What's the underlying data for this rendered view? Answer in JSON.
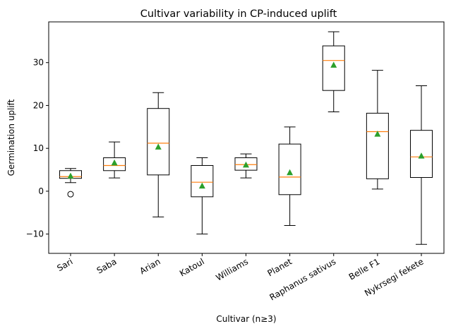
{
  "chart_data": {
    "type": "box",
    "title": "Cultivar variability in CP-induced uplift",
    "xlabel": "Cultivar (n≥3)",
    "ylabel": "Germination uplift",
    "ylim": [
      -14.5,
      39.5
    ],
    "yticks": [
      -10,
      0,
      10,
      20,
      30
    ],
    "yticklabels": [
      "−10",
      "0",
      "10",
      "20",
      "30"
    ],
    "grid": false,
    "categories": [
      "Sari",
      "Saba",
      "Arian",
      "Katoul",
      "Williams",
      "Planet",
      "Raphanus sativus",
      "Belle F1",
      "Nykrsegi fekete"
    ],
    "boxes": [
      {
        "whisker_low": 2.0,
        "q1": 3.0,
        "median": 3.4,
        "q3": 4.8,
        "whisker_high": 5.3,
        "mean": 3.5,
        "outliers": [
          -0.7
        ]
      },
      {
        "whisker_low": 3.1,
        "q1": 4.8,
        "median": 6.0,
        "q3": 7.8,
        "whisker_high": 11.5,
        "mean": 6.6,
        "outliers": []
      },
      {
        "whisker_low": -6.0,
        "q1": 3.8,
        "median": 11.2,
        "q3": 19.3,
        "whisker_high": 23.0,
        "mean": 10.3,
        "outliers": []
      },
      {
        "whisker_low": -10.0,
        "q1": -1.3,
        "median": 2.1,
        "q3": 6.0,
        "whisker_high": 7.8,
        "mean": 1.2,
        "outliers": []
      },
      {
        "whisker_low": 3.1,
        "q1": 4.9,
        "median": 6.2,
        "q3": 7.8,
        "whisker_high": 8.7,
        "mean": 6.1,
        "outliers": []
      },
      {
        "whisker_low": -8.0,
        "q1": -0.8,
        "median": 3.3,
        "q3": 11.0,
        "whisker_high": 15.0,
        "mean": 4.3,
        "outliers": []
      },
      {
        "whisker_low": 18.5,
        "q1": 23.5,
        "median": 30.5,
        "q3": 33.9,
        "whisker_high": 37.2,
        "mean": 29.4,
        "outliers": []
      },
      {
        "whisker_low": 0.5,
        "q1": 2.9,
        "median": 13.9,
        "q3": 18.2,
        "whisker_high": 28.2,
        "mean": 13.3,
        "outliers": []
      },
      {
        "whisker_low": -12.4,
        "q1": 3.2,
        "median": 8.0,
        "q3": 14.2,
        "whisker_high": 24.6,
        "mean": 8.2,
        "outliers": []
      }
    ],
    "colors": {
      "box": "#000000",
      "median": "#ff7f0e",
      "mean": "#2ca02c",
      "outlier": "#000000"
    }
  }
}
